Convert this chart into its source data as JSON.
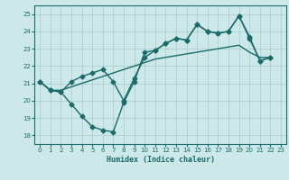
{
  "bg_color": "#cce8e8",
  "grid_color": "#aacccc",
  "line_color": "#1a6b6b",
  "xlabel": "Humidex (Indice chaleur)",
  "xlim": [
    -0.5,
    23.5
  ],
  "ylim": [
    17.5,
    25.5
  ],
  "xticks": [
    0,
    1,
    2,
    3,
    4,
    5,
    6,
    7,
    8,
    9,
    10,
    11,
    12,
    13,
    14,
    15,
    16,
    17,
    18,
    19,
    20,
    21,
    22,
    23
  ],
  "yticks": [
    18,
    19,
    20,
    21,
    22,
    23,
    24,
    25
  ],
  "line1_y": [
    21.1,
    20.6,
    20.5,
    19.8,
    19.1,
    18.5,
    18.3,
    18.2,
    19.9,
    21.1,
    22.8,
    22.9,
    23.3,
    23.6,
    23.5,
    24.4,
    24.0,
    23.9,
    24.0,
    24.9,
    23.6,
    22.3,
    22.5
  ],
  "line2_y": [
    21.1,
    20.6,
    20.5,
    21.1,
    21.4,
    21.6,
    21.8,
    21.1,
    20.0,
    21.3,
    22.5,
    22.9,
    23.3,
    23.6,
    23.5,
    24.4,
    24.0,
    23.9,
    24.0,
    24.9,
    23.7,
    22.3,
    22.5
  ],
  "line3_y": [
    21.1,
    20.6,
    20.6,
    20.8,
    21.0,
    21.2,
    21.4,
    21.6,
    21.8,
    22.0,
    22.2,
    22.4,
    22.5,
    22.6,
    22.7,
    22.8,
    22.9,
    23.0,
    23.1,
    23.2,
    22.8,
    22.5,
    22.5
  ]
}
